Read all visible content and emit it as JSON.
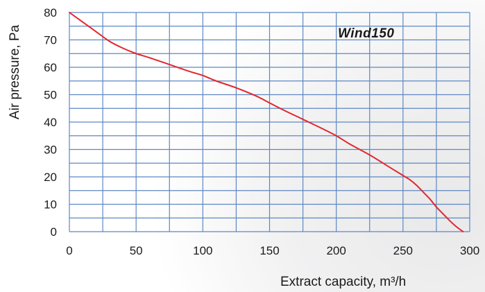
{
  "chart_data": {
    "type": "line",
    "title": "",
    "annotation": "Wind150",
    "xlabel": "Extract capacity, m³/h",
    "ylabel": "Air pressure, Pa",
    "xlim": [
      0,
      300
    ],
    "ylim": [
      0,
      80
    ],
    "xticks": [
      "0",
      "50",
      "100",
      "150",
      "200",
      "250",
      "300"
    ],
    "yticks": [
      "0",
      "10",
      "20",
      "30",
      "40",
      "50",
      "60",
      "70",
      "80"
    ],
    "grid": true,
    "legend": "none",
    "series": [
      {
        "color": "#e3262d",
        "x": [
          0,
          10,
          20,
          30,
          40,
          50,
          60,
          75,
          90,
          100,
          110,
          125,
          140,
          150,
          160,
          175,
          190,
          200,
          210,
          225,
          240,
          250,
          255,
          260,
          265,
          270,
          275,
          280,
          285,
          290,
          295
        ],
        "y": [
          80,
          76.5,
          73,
          69.5,
          67,
          65,
          63.5,
          61,
          58.5,
          57,
          55,
          52.5,
          49.5,
          47,
          44.5,
          41,
          37.5,
          35,
          32,
          28,
          23.5,
          20.5,
          19,
          17,
          14.5,
          12,
          9,
          6.5,
          4,
          1.8,
          0
        ]
      }
    ]
  }
}
